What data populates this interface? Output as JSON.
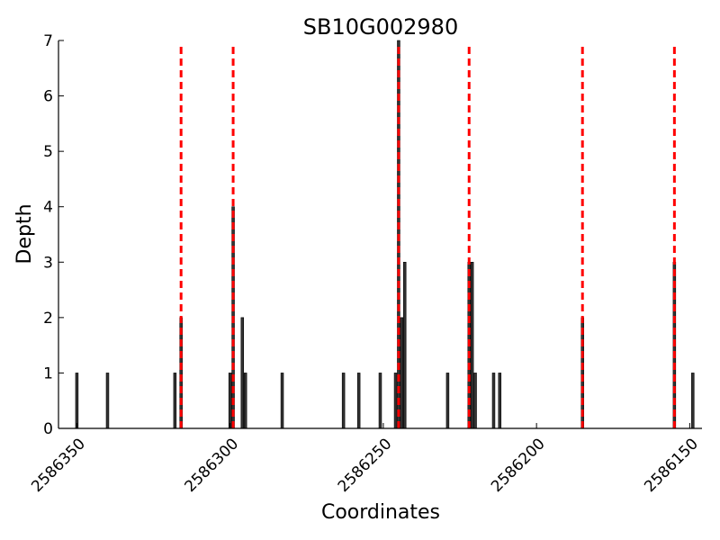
{
  "chart_data": {
    "type": "bar",
    "title": "SB10G002980",
    "xlabel": "Coordinates",
    "ylabel": "Depth",
    "x_reversed": true,
    "xlim": [
      2586356,
      2586146
    ],
    "ylim": [
      0,
      7
    ],
    "yticks": [
      0,
      1,
      2,
      3,
      4,
      5,
      6,
      7
    ],
    "xticks": [
      2586350,
      2586300,
      2586250,
      2586200,
      2586150
    ],
    "bar_color": "#333333",
    "series": [
      {
        "values": [
          {
            "x": 2586350,
            "depth": 1
          },
          {
            "x": 2586340,
            "depth": 1
          },
          {
            "x": 2586318,
            "depth": 1
          },
          {
            "x": 2586316,
            "depth": 2
          },
          {
            "x": 2586300,
            "depth": 1
          },
          {
            "x": 2586299,
            "depth": 4
          },
          {
            "x": 2586296,
            "depth": 2
          },
          {
            "x": 2586295,
            "depth": 1
          },
          {
            "x": 2586283,
            "depth": 1
          },
          {
            "x": 2586263,
            "depth": 1
          },
          {
            "x": 2586258,
            "depth": 1
          },
          {
            "x": 2586251,
            "depth": 1
          },
          {
            "x": 2586246,
            "depth": 1
          },
          {
            "x": 2586245,
            "depth": 7
          },
          {
            "x": 2586244,
            "depth": 2
          },
          {
            "x": 2586243,
            "depth": 3
          },
          {
            "x": 2586229,
            "depth": 1
          },
          {
            "x": 2586222,
            "depth": 3
          },
          {
            "x": 2586221,
            "depth": 3
          },
          {
            "x": 2586220,
            "depth": 1
          },
          {
            "x": 2586214,
            "depth": 1
          },
          {
            "x": 2586212,
            "depth": 1
          },
          {
            "x": 2586185,
            "depth": 2
          },
          {
            "x": 2586155,
            "depth": 3
          },
          {
            "x": 2586149,
            "depth": 1
          }
        ]
      }
    ],
    "vlines": {
      "color": "#ff0000",
      "style": "dashed",
      "x": [
        2586316,
        2586299,
        2586245,
        2586222,
        2586185,
        2586155
      ]
    }
  }
}
